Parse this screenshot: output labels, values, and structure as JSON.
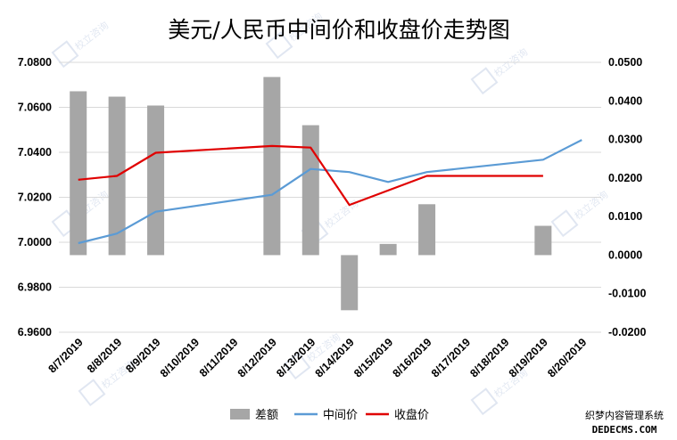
{
  "chart_data": {
    "type": "bar+line",
    "title": "美元/人民币中间价和收盘价走势图",
    "categories": [
      "8/7/2019",
      "8/8/2019",
      "8/9/2019",
      "8/10/2019",
      "8/11/2019",
      "8/12/2019",
      "8/13/2019",
      "8/14/2019",
      "8/15/2019",
      "8/16/2019",
      "8/17/2019",
      "8/18/2019",
      "8/19/2019",
      "8/20/2019"
    ],
    "series": [
      {
        "name": "差额",
        "type": "bar",
        "axis": "right",
        "color": "#a6a6a6",
        "values": [
          0.0425,
          0.0411,
          0.0388,
          null,
          null,
          0.0462,
          0.0337,
          -0.0143,
          0.0029,
          0.0132,
          null,
          null,
          0.0076,
          null
        ]
      },
      {
        "name": "中间价",
        "type": "line",
        "axis": "left",
        "color": "#5b9bd5",
        "values": [
          6.9996,
          7.0039,
          7.0136,
          null,
          null,
          7.0211,
          7.0326,
          7.0312,
          7.0268,
          7.0312,
          null,
          null,
          7.0367,
          7.0455
        ]
      },
      {
        "name": "收盘价",
        "type": "line",
        "axis": "left",
        "color": "#e00000",
        "values": [
          7.0278,
          7.0295,
          7.0398,
          null,
          null,
          7.0428,
          7.0421,
          7.0166,
          null,
          7.0295,
          null,
          null,
          7.0295,
          null
        ]
      }
    ],
    "y_left": {
      "ylim": [
        6.96,
        7.08
      ],
      "ticks": [
        "6.9600",
        "6.9800",
        "7.0000",
        "7.0200",
        "7.0400",
        "7.0600",
        "7.0800"
      ]
    },
    "y_right": {
      "ylim": [
        -0.02,
        0.05
      ],
      "ticks": [
        "-0.0200",
        "-0.0100",
        "0.0000",
        "0.0100",
        "0.0200",
        "0.0300",
        "0.0400",
        "0.0500"
      ]
    },
    "grid": "horizontal",
    "legend_position": "bottom"
  },
  "watermark": {
    "text": "校立咨询"
  },
  "footer_watermark": {
    "line1": "织梦内容管理系统",
    "line2": "DEDECMS.COM"
  }
}
